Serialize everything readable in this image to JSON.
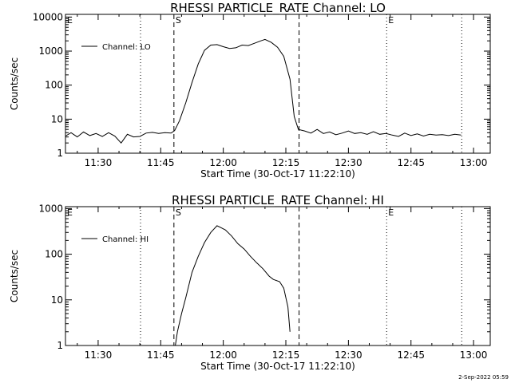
{
  "footer": {
    "timestamp": "2-Sep-2022 05:59"
  },
  "chart_data": [
    {
      "type": "line",
      "title": "RHESSI PARTICLE_RATE Channel: LO",
      "xlabel": "Start Time (30-Oct-17 11:22:10)",
      "ylabel": "Counts/sec",
      "yscale": "log",
      "xlim": [
        "11:22:10",
        "13:04:00"
      ],
      "ylim": [
        1,
        12000
      ],
      "x_ticks": [
        "11:30",
        "11:45",
        "12:00",
        "12:15",
        "12:30",
        "12:45",
        "13:00"
      ],
      "y_ticks": [
        "1",
        "10",
        "100",
        "1000",
        "10000"
      ],
      "legend": {
        "position": "top-left",
        "entries": [
          "Channel: LO"
        ]
      },
      "markers": [
        {
          "time": "11:22:10",
          "label": "E",
          "style": "dotted"
        },
        {
          "time": "11:40:10",
          "label": "",
          "style": "dotted"
        },
        {
          "time": "11:48:10",
          "label": "S",
          "style": "dashed"
        },
        {
          "time": "12:18:10",
          "label": "",
          "style": "dashed"
        },
        {
          "time": "12:39:10",
          "label": "E",
          "style": "dotted"
        },
        {
          "time": "12:57:10",
          "label": "",
          "style": "dotted"
        }
      ],
      "series": [
        {
          "name": "Channel: LO",
          "x": [
            "11:22:10",
            "11:23:30",
            "11:25:00",
            "11:26:30",
            "11:28:00",
            "11:29:30",
            "11:31:00",
            "11:32:30",
            "11:34:00",
            "11:35:30",
            "11:37:00",
            "11:38:30",
            "11:40:00",
            "11:41:30",
            "11:43:00",
            "11:44:30",
            "11:46:00",
            "11:47:30",
            "11:48:20",
            "11:49:30",
            "11:51:00",
            "11:52:30",
            "11:54:00",
            "11:55:30",
            "11:57:00",
            "11:58:30",
            "12:00:00",
            "12:01:30",
            "12:03:00",
            "12:04:30",
            "12:06:00",
            "12:07:30",
            "12:09:00",
            "12:10:00",
            "12:11:30",
            "12:13:00",
            "12:14:30",
            "12:16:00",
            "12:17:00",
            "12:18:00",
            "12:19:30",
            "12:21:00",
            "12:22:30",
            "12:24:00",
            "12:25:30",
            "12:27:00",
            "12:28:30",
            "12:30:00",
            "12:31:30",
            "12:33:00",
            "12:34:30",
            "12:36:00",
            "12:37:30",
            "12:39:00",
            "12:40:30",
            "12:42:00",
            "12:43:30",
            "12:45:00",
            "12:46:30",
            "12:48:00",
            "12:49:30",
            "12:51:00",
            "12:52:30",
            "12:54:00",
            "12:55:30",
            "12:57:00"
          ],
          "y": [
            3.2,
            4.0,
            3.0,
            4.2,
            3.3,
            3.8,
            3.1,
            4.0,
            3.2,
            2.0,
            3.6,
            3.0,
            3.1,
            3.9,
            4.1,
            3.8,
            4.0,
            3.9,
            4.6,
            9.0,
            30,
            120,
            420,
            1050,
            1500,
            1550,
            1350,
            1200,
            1250,
            1500,
            1450,
            1700,
            2000,
            2200,
            1800,
            1300,
            700,
            150,
            12,
            5.0,
            4.5,
            3.9,
            5.0,
            3.8,
            4.2,
            3.5,
            3.9,
            4.5,
            3.8,
            4.0,
            3.6,
            4.3,
            3.6,
            3.8,
            3.4,
            3.1,
            3.9,
            3.3,
            3.7,
            3.2,
            3.6,
            3.4,
            3.5,
            3.3,
            3.6,
            3.4
          ]
        }
      ]
    },
    {
      "type": "line",
      "title": "RHESSI PARTICLE_RATE Channel: HI",
      "xlabel": "Start Time (30-Oct-17 11:22:10)",
      "ylabel": "Counts/sec",
      "yscale": "log",
      "xlim": [
        "11:22:10",
        "13:04:00"
      ],
      "ylim": [
        1,
        1100
      ],
      "x_ticks": [
        "11:30",
        "11:45",
        "12:00",
        "12:15",
        "12:30",
        "12:45",
        "13:00"
      ],
      "y_ticks": [
        "1",
        "10",
        "100",
        "1000"
      ],
      "legend": {
        "position": "top-left",
        "entries": [
          "Channel: HI"
        ]
      },
      "markers": [
        {
          "time": "11:22:10",
          "label": "E",
          "style": "dotted"
        },
        {
          "time": "11:40:10",
          "label": "",
          "style": "dotted"
        },
        {
          "time": "11:48:10",
          "label": "S",
          "style": "dashed"
        },
        {
          "time": "12:18:10",
          "label": "",
          "style": "dashed"
        },
        {
          "time": "12:39:10",
          "label": "E",
          "style": "dotted"
        },
        {
          "time": "12:57:10",
          "label": "",
          "style": "dotted"
        }
      ],
      "series": [
        {
          "name": "Channel: HI",
          "x": [
            "11:48:30",
            "11:49:00",
            "11:50:00",
            "11:51:00",
            "11:52:30",
            "11:54:00",
            "11:55:30",
            "11:57:00",
            "11:58:30",
            "11:59:30",
            "12:00:30",
            "12:02:00",
            "12:03:30",
            "12:05:00",
            "12:06:30",
            "12:08:00",
            "12:09:30",
            "12:11:00",
            "12:12:00",
            "12:13:30",
            "12:14:30",
            "12:15:30",
            "12:16:00"
          ],
          "y": [
            1.0,
            2.0,
            5.0,
            11,
            40,
            90,
            180,
            300,
            420,
            380,
            340,
            250,
            170,
            130,
            90,
            65,
            48,
            33,
            28,
            25,
            18,
            7,
            2.0
          ]
        }
      ]
    }
  ]
}
